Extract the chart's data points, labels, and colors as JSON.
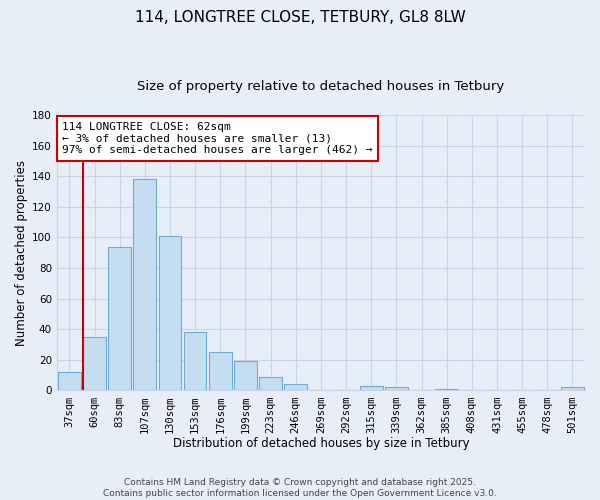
{
  "title": "114, LONGTREE CLOSE, TETBURY, GL8 8LW",
  "subtitle": "Size of property relative to detached houses in Tetbury",
  "xlabel": "Distribution of detached houses by size in Tetbury",
  "ylabel": "Number of detached properties",
  "bar_labels": [
    "37sqm",
    "60sqm",
    "83sqm",
    "107sqm",
    "130sqm",
    "153sqm",
    "176sqm",
    "199sqm",
    "223sqm",
    "246sqm",
    "269sqm",
    "292sqm",
    "315sqm",
    "339sqm",
    "362sqm",
    "385sqm",
    "408sqm",
    "431sqm",
    "455sqm",
    "478sqm",
    "501sqm"
  ],
  "bar_values": [
    12,
    35,
    94,
    138,
    101,
    38,
    25,
    19,
    9,
    4,
    0,
    0,
    3,
    2,
    0,
    1,
    0,
    0,
    0,
    0,
    2
  ],
  "bar_color": "#c5ddf0",
  "bar_edge_color": "#6aaed6",
  "annotation_text": "114 LONGTREE CLOSE: 62sqm\n← 3% of detached houses are smaller (13)\n97% of semi-detached houses are larger (462) →",
  "annotation_box_color": "#ffffff",
  "annotation_box_edge": "#cc0000",
  "vline_x_index": 1,
  "vline_color": "#cc0000",
  "ylim": [
    0,
    180
  ],
  "yticks": [
    0,
    20,
    40,
    60,
    80,
    100,
    120,
    140,
    160,
    180
  ],
  "footer_line1": "Contains HM Land Registry data © Crown copyright and database right 2025.",
  "footer_line2": "Contains public sector information licensed under the Open Government Licence v3.0.",
  "bg_color": "#e8eef8",
  "grid_color": "#c8d4e8",
  "title_fontsize": 11,
  "subtitle_fontsize": 9.5,
  "axis_label_fontsize": 8.5,
  "tick_fontsize": 7.5,
  "annotation_fontsize": 8,
  "footer_fontsize": 6.5
}
